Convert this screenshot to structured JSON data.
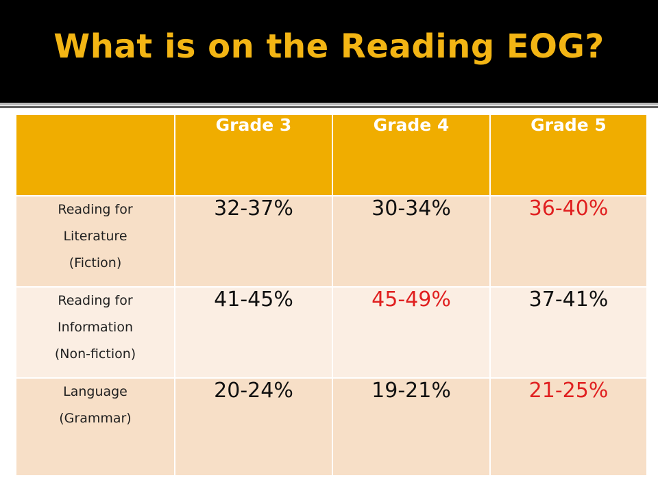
{
  "title": "What is on the Reading EOG?",
  "table": {
    "corner": "",
    "columns": [
      "Grade 3",
      "Grade 4",
      "Grade 5"
    ],
    "rows": [
      {
        "label_lines": [
          "Reading for",
          "Literature",
          "(Fiction)"
        ],
        "values": [
          "32-37%",
          "30-34%",
          "36-40%"
        ],
        "highlight_index": 2
      },
      {
        "label_lines": [
          "Reading for",
          "Information",
          "(Non-fiction)"
        ],
        "values": [
          "41-45%",
          "45-49%",
          "37-41%"
        ],
        "highlight_index": 1
      },
      {
        "label_lines": [
          "Language",
          "(Grammar)"
        ],
        "values": [
          "20-24%",
          "19-21%",
          "21-25%"
        ],
        "highlight_index": 2
      }
    ]
  },
  "colors": {
    "title": "#f3b514",
    "header_bg": "#f0ad00",
    "highlight_text": "#e02020"
  }
}
